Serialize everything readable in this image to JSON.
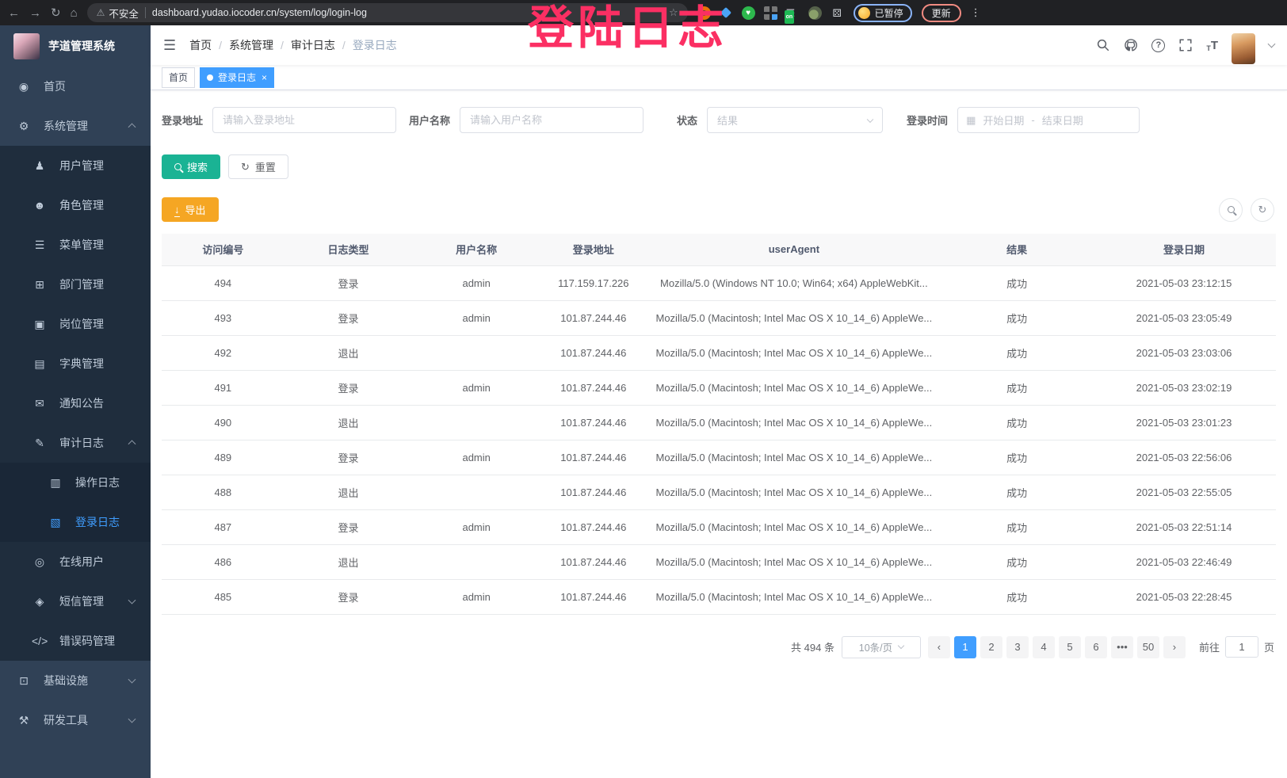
{
  "browser": {
    "security_label": "不安全",
    "url": "dashboard.yudao.iocoder.cn/system/log/login-log",
    "ext_on_badge": "on",
    "paused_label": "已暂停",
    "update_label": "更新"
  },
  "overlay": {
    "text": "登陆日志",
    "color": "#FB2F63"
  },
  "sidebar": {
    "title": "芋道管理系统",
    "items": [
      {
        "id": "home",
        "label": "首页",
        "level": 1,
        "icon": "dashboard-icon",
        "glyph": "◉",
        "chevron": null,
        "active": false
      },
      {
        "id": "system-mgmt",
        "label": "系统管理",
        "level": 1,
        "icon": "gear-icon",
        "glyph": "⚙",
        "chevron": "up",
        "active": false
      },
      {
        "id": "user-mgmt",
        "label": "用户管理",
        "level": 2,
        "icon": "user-icon",
        "glyph": "♟",
        "chevron": null,
        "active": false
      },
      {
        "id": "role-mgmt",
        "label": "角色管理",
        "level": 2,
        "icon": "roles-icon",
        "glyph": "☻",
        "chevron": null,
        "active": false
      },
      {
        "id": "menu-mgmt",
        "label": "菜单管理",
        "level": 2,
        "icon": "menu-tree-icon",
        "glyph": "☰",
        "chevron": null,
        "active": false
      },
      {
        "id": "dept-mgmt",
        "label": "部门管理",
        "level": 2,
        "icon": "org-tree-icon",
        "glyph": "⊞",
        "chevron": null,
        "active": false
      },
      {
        "id": "post-mgmt",
        "label": "岗位管理",
        "level": 2,
        "icon": "post-badge-icon",
        "glyph": "▣",
        "chevron": null,
        "active": false
      },
      {
        "id": "dict-mgmt",
        "label": "字典管理",
        "level": 2,
        "icon": "dictionary-icon",
        "glyph": "▤",
        "chevron": null,
        "active": false
      },
      {
        "id": "notice",
        "label": "通知公告",
        "level": 2,
        "icon": "announcement-icon",
        "glyph": "✉",
        "chevron": null,
        "active": false
      },
      {
        "id": "audit-log",
        "label": "审计日志",
        "level": 2,
        "icon": "audit-log-icon",
        "glyph": "✎",
        "chevron": "up",
        "active": false
      },
      {
        "id": "operation-log",
        "label": "操作日志",
        "level": 3,
        "icon": "operation-log-icon",
        "glyph": "▥",
        "chevron": null,
        "active": false
      },
      {
        "id": "login-log",
        "label": "登录日志",
        "level": 3,
        "icon": "login-log-icon",
        "glyph": "▧",
        "chevron": null,
        "active": true
      },
      {
        "id": "online-users",
        "label": "在线用户",
        "level": 2,
        "icon": "online-users-icon",
        "glyph": "◎",
        "chevron": null,
        "active": false
      },
      {
        "id": "sms-mgmt",
        "label": "短信管理",
        "level": 2,
        "icon": "sms-shield-icon",
        "glyph": "◈",
        "chevron": "down",
        "active": false
      },
      {
        "id": "error-code-mgmt",
        "label": "错误码管理",
        "level": 2,
        "icon": "code-icon",
        "glyph": "</>",
        "chevron": null,
        "active": false
      },
      {
        "id": "infrastructure",
        "label": "基础设施",
        "level": 1,
        "icon": "monitor-icon",
        "glyph": "⊡",
        "chevron": "down",
        "active": false
      },
      {
        "id": "dev-tools",
        "label": "研发工具",
        "level": 1,
        "icon": "tools-icon",
        "glyph": "⚒",
        "chevron": "down",
        "active": false
      }
    ]
  },
  "navbar": {
    "breadcrumbs": [
      "首页",
      "系统管理",
      "审计日志",
      "登录日志"
    ]
  },
  "tags": [
    {
      "label": "首页",
      "active": false
    },
    {
      "label": "登录日志",
      "active": true
    }
  ],
  "filters": {
    "login_address_label": "登录地址",
    "login_address_placeholder": "请输入登录地址",
    "username_label": "用户名称",
    "username_placeholder": "请输入用户名称",
    "status_label": "状态",
    "status_placeholder": "结果",
    "login_time_label": "登录时间",
    "date_start_placeholder": "开始日期",
    "date_separator": "-",
    "date_end_placeholder": "结束日期",
    "search_label": "搜索",
    "reset_label": "重置"
  },
  "toolbar": {
    "export_label": "导出",
    "export_icon_glyph": "↓"
  },
  "table": {
    "headers": [
      "访问编号",
      "日志类型",
      "用户名称",
      "登录地址",
      "userAgent",
      "结果",
      "登录日期"
    ],
    "rows": [
      [
        "494",
        "登录",
        "admin",
        "117.159.17.226",
        "Mozilla/5.0 (Windows NT 10.0; Win64; x64) AppleWebKit...",
        "成功",
        "2021-05-03 23:12:15"
      ],
      [
        "493",
        "登录",
        "admin",
        "101.87.244.46",
        "Mozilla/5.0 (Macintosh; Intel Mac OS X 10_14_6) AppleWe...",
        "成功",
        "2021-05-03 23:05:49"
      ],
      [
        "492",
        "退出",
        "",
        "101.87.244.46",
        "Mozilla/5.0 (Macintosh; Intel Mac OS X 10_14_6) AppleWe...",
        "成功",
        "2021-05-03 23:03:06"
      ],
      [
        "491",
        "登录",
        "admin",
        "101.87.244.46",
        "Mozilla/5.0 (Macintosh; Intel Mac OS X 10_14_6) AppleWe...",
        "成功",
        "2021-05-03 23:02:19"
      ],
      [
        "490",
        "退出",
        "",
        "101.87.244.46",
        "Mozilla/5.0 (Macintosh; Intel Mac OS X 10_14_6) AppleWe...",
        "成功",
        "2021-05-03 23:01:23"
      ],
      [
        "489",
        "登录",
        "admin",
        "101.87.244.46",
        "Mozilla/5.0 (Macintosh; Intel Mac OS X 10_14_6) AppleWe...",
        "成功",
        "2021-05-03 22:56:06"
      ],
      [
        "488",
        "退出",
        "",
        "101.87.244.46",
        "Mozilla/5.0 (Macintosh; Intel Mac OS X 10_14_6) AppleWe...",
        "成功",
        "2021-05-03 22:55:05"
      ],
      [
        "487",
        "登录",
        "admin",
        "101.87.244.46",
        "Mozilla/5.0 (Macintosh; Intel Mac OS X 10_14_6) AppleWe...",
        "成功",
        "2021-05-03 22:51:14"
      ],
      [
        "486",
        "退出",
        "",
        "101.87.244.46",
        "Mozilla/5.0 (Macintosh; Intel Mac OS X 10_14_6) AppleWe...",
        "成功",
        "2021-05-03 22:46:49"
      ],
      [
        "485",
        "登录",
        "admin",
        "101.87.244.46",
        "Mozilla/5.0 (Macintosh; Intel Mac OS X 10_14_6) AppleWe...",
        "成功",
        "2021-05-03 22:28:45"
      ]
    ],
    "column_widths": [
      "11%",
      "11.5%",
      "11.5%",
      "9.5%",
      "26.5%",
      "13.5%",
      "16.5%"
    ]
  },
  "pagination": {
    "total": "共 494 条",
    "page_size": "10条/页",
    "prev": "‹",
    "next": "›",
    "pages": [
      "1",
      "2",
      "3",
      "4",
      "5",
      "6",
      "•••",
      "50"
    ],
    "active_page": "1",
    "jump_prefix": "前往",
    "jump_value": "1",
    "jump_suffix": "页"
  },
  "colors": {
    "accent": "#409EFF",
    "search_button": "#1AB394",
    "export_button": "#F5A623",
    "overlay_pink": "#FB2F63",
    "sidebar_bg": "#304156",
    "submenu_bg": "#1F2D3D"
  }
}
